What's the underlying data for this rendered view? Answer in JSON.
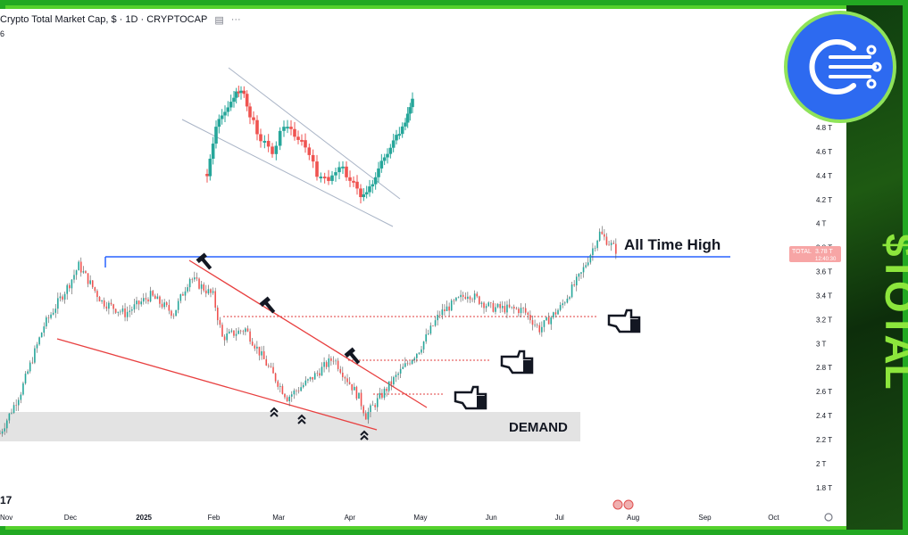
{
  "header": {
    "title": "Crypto Total Market Cap, $ · 1D · CRYPTOCAP",
    "truncated_prefix": "6"
  },
  "sidebar_ticker": "$TOTAL",
  "annotations": {
    "ath_label": "All Time High",
    "demand_label": "DEMAND",
    "price_tag_symbol": "TOTAL",
    "price_tag_value": "3.78 T",
    "price_tag_time": "12:40:30"
  },
  "chart_data": {
    "type": "candlestick",
    "title": "Crypto Total Market Cap, $ · 1D · CRYPTOCAP",
    "xlabel": "",
    "ylabel": "",
    "y_unit": "T",
    "y_ticks": [
      "1.8 T",
      "2 T",
      "2.2 T",
      "2.4 T",
      "2.6 T",
      "2.8 T",
      "3 T",
      "3.2 T",
      "3.4 T",
      "3.6 T",
      "3.8 T",
      "4 T",
      "4.2 T",
      "4.4 T",
      "4.6 T",
      "4.8 T"
    ],
    "x_ticks": [
      "Nov",
      "Dec",
      "2025",
      "Feb",
      "Mar",
      "Apr",
      "May",
      "Jun",
      "Jul",
      "Aug",
      "Sep",
      "Oct"
    ],
    "ylim": [
      1.7,
      5.0
    ],
    "last_price": 3.78,
    "all_time_high_level": 3.7,
    "demand_zone": [
      2.18,
      2.42
    ],
    "resistance_level_1": 3.22,
    "resistance_level_2": 2.88,
    "resistance_level_3": 2.58,
    "price_path": [
      [
        "2024-11-01",
        2.25
      ],
      [
        "2024-11-10",
        2.6
      ],
      [
        "2024-11-20",
        3.15
      ],
      [
        "2024-12-01",
        3.5
      ],
      [
        "2024-12-05",
        3.65
      ],
      [
        "2024-12-15",
        3.35
      ],
      [
        "2024-12-25",
        3.25
      ],
      [
        "2025-01-05",
        3.4
      ],
      [
        "2025-01-15",
        3.25
      ],
      [
        "2025-01-22",
        3.55
      ],
      [
        "2025-02-01",
        3.4
      ],
      [
        "2025-02-05",
        3.05
      ],
      [
        "2025-02-15",
        3.12
      ],
      [
        "2025-02-25",
        2.8
      ],
      [
        "2025-03-05",
        2.55
      ],
      [
        "2025-03-15",
        2.7
      ],
      [
        "2025-03-25",
        2.88
      ],
      [
        "2025-04-05",
        2.55
      ],
      [
        "2025-04-08",
        2.4
      ],
      [
        "2025-04-20",
        2.7
      ],
      [
        "2025-05-01",
        2.95
      ],
      [
        "2025-05-10",
        3.25
      ],
      [
        "2025-05-22",
        3.42
      ],
      [
        "2025-06-01",
        3.3
      ],
      [
        "2025-06-15",
        3.28
      ],
      [
        "2025-06-22",
        3.12
      ],
      [
        "2025-07-01",
        3.3
      ],
      [
        "2025-07-10",
        3.58
      ],
      [
        "2025-07-18",
        3.92
      ],
      [
        "2025-07-25",
        3.78
      ]
    ]
  }
}
